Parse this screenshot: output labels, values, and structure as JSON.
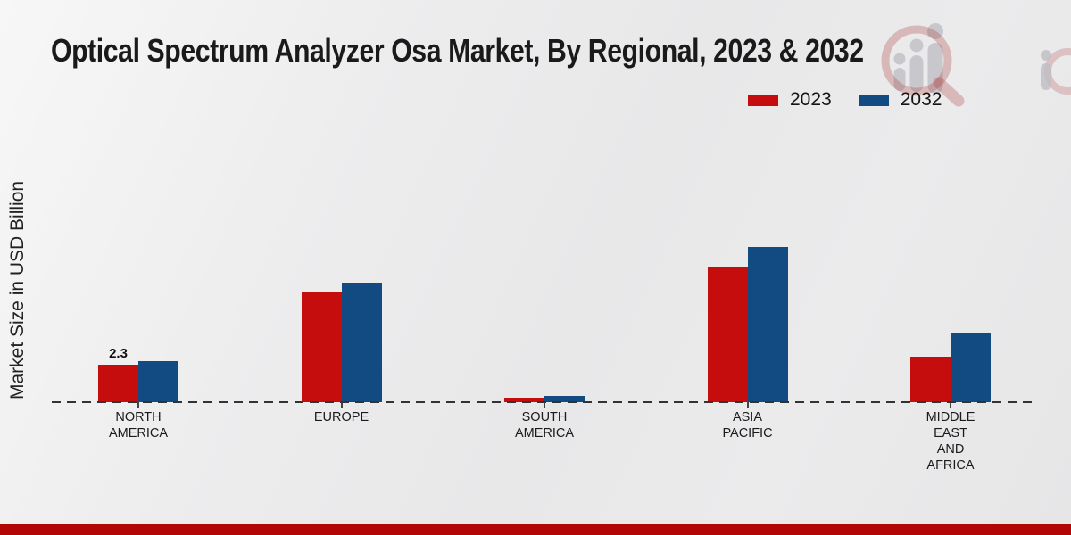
{
  "title": "Optical Spectrum Analyzer Osa Market, By Regional, 2023 & 2032",
  "colors": {
    "series_2023": "#c60d0d",
    "series_2032": "#114b82",
    "footer_bar": "#b20606",
    "axis": "#333333",
    "background": "#e9e9ea"
  },
  "watermark": "bar-chart-people-magnifier-logo",
  "chart_data": {
    "type": "bar",
    "title": "Optical Spectrum Analyzer Osa Market, By Regional, 2023 & 2032",
    "ylabel": "Market Size in USD Billion",
    "xlabel": "",
    "categories": [
      "NORTH AMERICA",
      "EUROPE",
      "SOUTH AMERICA",
      "ASIA PACIFIC",
      "MIDDLE EAST AND AFRICA"
    ],
    "category_lines": [
      [
        "NORTH",
        "AMERICA"
      ],
      [
        "EUROPE"
      ],
      [
        "SOUTH",
        "AMERICA"
      ],
      [
        "ASIA",
        "PACIFIC"
      ],
      [
        "MIDDLE",
        "EAST",
        "AND",
        "AFRICA"
      ]
    ],
    "series": [
      {
        "name": "2023",
        "color": "#c60d0d",
        "values": [
          2.3,
          6.7,
          0.3,
          8.3,
          2.8
        ]
      },
      {
        "name": "2032",
        "color": "#114b82",
        "values": [
          2.5,
          7.3,
          0.4,
          9.5,
          4.2
        ]
      }
    ],
    "data_labels": [
      {
        "series": "2023",
        "category": "NORTH AMERICA",
        "text": "2.3"
      }
    ],
    "ylim": [
      0,
      10
    ],
    "grid": false,
    "baseline_style": "dashed",
    "legend_position": "top-right"
  }
}
